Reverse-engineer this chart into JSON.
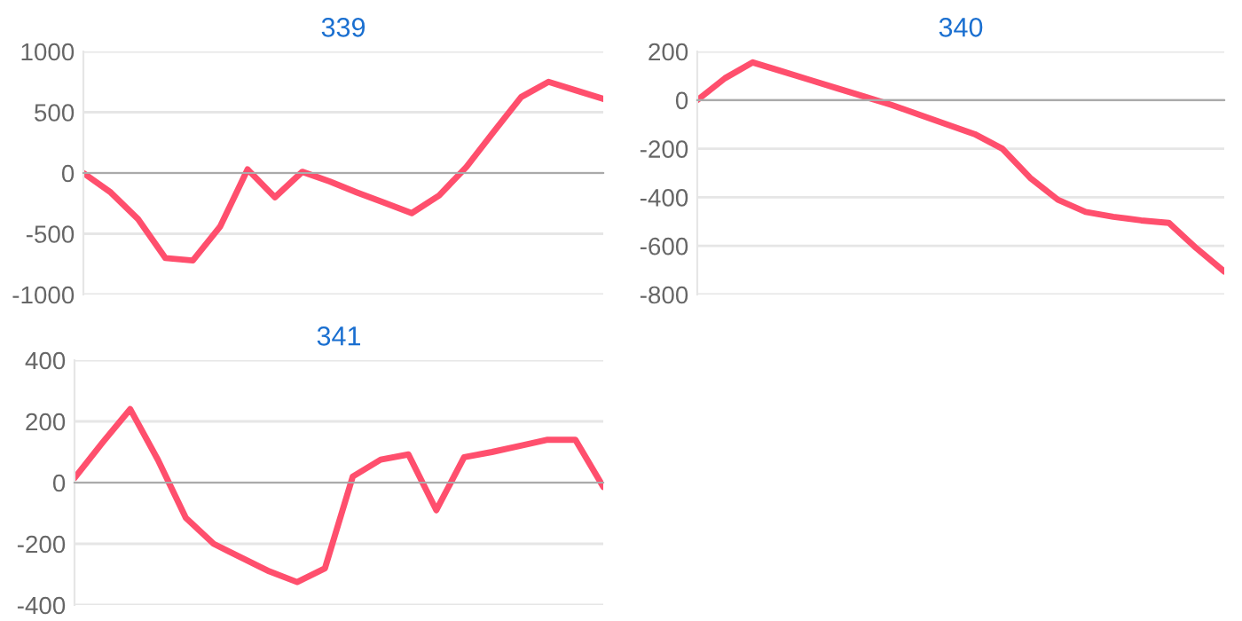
{
  "chart_data": [
    {
      "type": "line",
      "title": "339",
      "categories": [
        null,
        null,
        null,
        null,
        null,
        null,
        null,
        null,
        null,
        null,
        null,
        null,
        null,
        null,
        null,
        null,
        null,
        null,
        null,
        null
      ],
      "color": "#ff4f6d",
      "values": [
        0,
        -160,
        -380,
        -700,
        -720,
        -440,
        30,
        -200,
        10,
        -70,
        -160,
        -245,
        -330,
        -185,
        50,
        340,
        625,
        750,
        680,
        610
      ],
      "ylim": [
        -1000,
        1000
      ],
      "yticks": [
        -1000,
        -500,
        0,
        500,
        1000
      ],
      "grid": "y",
      "marker": "none"
    },
    {
      "type": "line",
      "title": "340",
      "categories": [
        null,
        null,
        null,
        null,
        null,
        null,
        null,
        null,
        null,
        null,
        null,
        null,
        null,
        null,
        null,
        null,
        null,
        null,
        null,
        null
      ],
      "color": "#ff4f6d",
      "values": [
        0,
        90,
        155,
        120,
        85,
        50,
        15,
        -20,
        -60,
        -100,
        -140,
        -200,
        -320,
        -410,
        -460,
        -480,
        -495,
        -505,
        -610,
        -705
      ],
      "ylim": [
        -800,
        200
      ],
      "yticks": [
        -800,
        -600,
        -400,
        -200,
        0,
        200
      ],
      "grid": "y",
      "marker": "none"
    },
    {
      "type": "line",
      "title": "341",
      "categories": [
        null,
        null,
        null,
        null,
        null,
        null,
        null,
        null,
        null,
        null,
        null,
        null,
        null,
        null,
        null,
        null,
        null,
        null,
        null,
        null
      ],
      "color": "#ff4f6d",
      "values": [
        15,
        130,
        240,
        74,
        -115,
        -200,
        -245,
        -290,
        -325,
        -280,
        20,
        75,
        92,
        -90,
        83,
        100,
        120,
        140,
        140,
        -14
      ],
      "ylim": [
        -400,
        400
      ],
      "yticks": [
        -400,
        -200,
        0,
        200,
        400
      ],
      "grid": "y",
      "marker": "none"
    }
  ]
}
